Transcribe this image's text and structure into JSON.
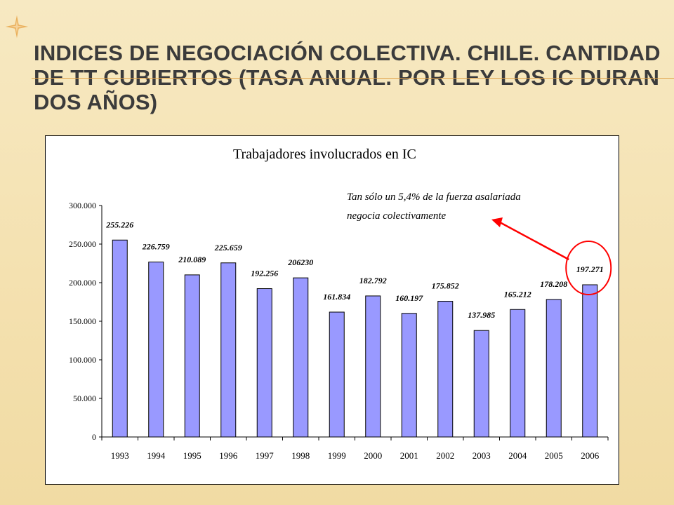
{
  "slide": {
    "title": "Indices de negociación colectiva. Chile. Cantidad de TT cubiertos (tasa anual. Por ley los IC duran dos años)"
  },
  "colors": {
    "bar": "#9999ff",
    "annotation": "#ff0000",
    "title_rule": "#e0a24a",
    "star": "#e8a64a"
  },
  "icons": {
    "slide_bullet": "star-icon"
  },
  "note": {
    "line1": "Tan sólo un 5,4% de la fuerza asalariada",
    "line2": "negocia colectivamente"
  },
  "chart_data": {
    "type": "bar",
    "title": "Trabajadores involucrados en IC",
    "xlabel": "",
    "ylabel": "",
    "categories": [
      "1993",
      "1994",
      "1995",
      "1996",
      "1997",
      "1998",
      "1999",
      "2000",
      "2001",
      "2002",
      "2003",
      "2004",
      "2005",
      "2006"
    ],
    "values": [
      255226,
      226759,
      210089,
      225659,
      192256,
      206230,
      161834,
      182792,
      160197,
      175852,
      137985,
      165212,
      178208,
      197271
    ],
    "value_labels": [
      "255.226",
      "226.759",
      "210.089",
      "225.659",
      "192.256",
      "206230",
      "161.834",
      "182.792",
      "160.197",
      "175.852",
      "137.985",
      "165.212",
      "178.208",
      "197.271"
    ],
    "ylim": [
      0,
      300000
    ],
    "yticks": [
      0,
      50000,
      100000,
      150000,
      200000,
      250000,
      300000
    ],
    "ytick_labels": [
      "0",
      "50.000",
      "100.000",
      "150.000",
      "200.000",
      "250.000",
      "300.000"
    ],
    "grid": false,
    "legend": "none",
    "highlight_category": "2006"
  }
}
